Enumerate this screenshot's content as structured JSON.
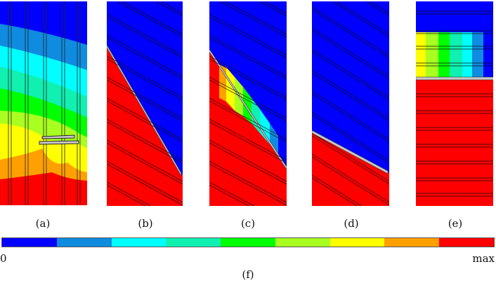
{
  "captions": {
    "a": "(a)",
    "b": "(b)",
    "c": "(c)",
    "d": "(d)",
    "e": "(e)",
    "f": "(f)"
  },
  "colorbar": {
    "min_label": "0",
    "max_label": "max",
    "colors": [
      "#0000ff",
      "#0f8bdf",
      "#00ffff",
      "#10f0b0",
      "#00ff00",
      "#a8ff20",
      "#ffff00",
      "#ffa000",
      "#ff0000"
    ]
  },
  "palette": {
    "blue": "#0000ff",
    "red": "#ff0000",
    "crack": "#c8c8c8"
  }
}
